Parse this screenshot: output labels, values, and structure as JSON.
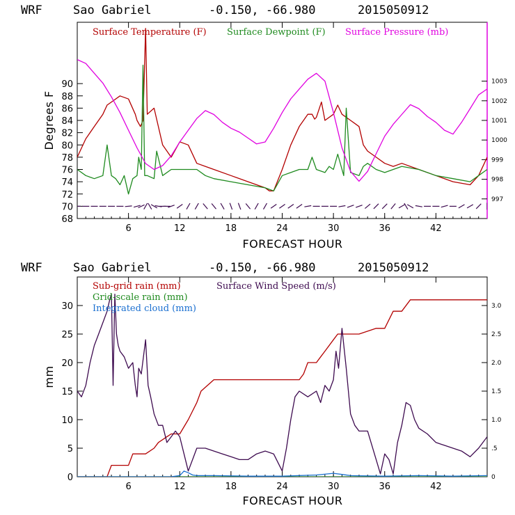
{
  "colors": {
    "temperature": "#b30000",
    "dewpoint": "#1e8a1e",
    "pressure": "#e000e0",
    "subgrid_rain": "#b30000",
    "gridscale_rain": "#1e8a1e",
    "cloud": "#1a6fd0",
    "wind": "#3d0a4f",
    "axis": "#000000"
  },
  "chart_data": [
    {
      "type": "line",
      "header": {
        "model": "WRF",
        "station": "Sao Gabriel",
        "coords": "-0.150, -66.980",
        "init": "2015050912"
      },
      "xlabel": "FORECAST HOUR",
      "ylabel": "Degrees F",
      "xlim": [
        0,
        48
      ],
      "ylim": [
        68,
        100
      ],
      "y2lim": [
        996,
        1006
      ],
      "xticks": [
        6,
        12,
        18,
        24,
        30,
        36,
        42
      ],
      "xtick_labels": [
        "6",
        "12",
        "18",
        "24",
        "30",
        "36",
        "42"
      ],
      "yticks": [
        68,
        70,
        72,
        74,
        76,
        78,
        80,
        82,
        84,
        86,
        88,
        90
      ],
      "ytick_labels": [
        "68",
        "70",
        "72",
        "74",
        "76",
        "78",
        "80",
        "82",
        "84",
        "86",
        "88",
        "90"
      ],
      "y2ticks": [
        997,
        998,
        999,
        1000,
        1001,
        1002,
        1003
      ],
      "y2tick_labels": [
        "997",
        "998",
        "999",
        "1000",
        "1001",
        "1002",
        "1003"
      ],
      "legend": [
        "Surface Temperature (F)",
        "Surface Dewpoint (F)",
        "Surface Pressure (mb)"
      ],
      "series": [
        {
          "name": "Surface Temperature (F)",
          "axis": "left",
          "x": [
            0,
            1,
            2,
            3,
            3.5,
            4,
            5,
            6,
            6.8,
            7,
            7.4,
            7.7,
            8,
            8.2,
            9,
            10,
            11,
            12,
            13,
            14,
            15,
            16,
            18,
            20,
            22,
            22.5,
            23,
            24,
            25,
            26,
            27,
            27.5,
            27.8,
            28,
            28.6,
            29,
            30,
            30.5,
            31,
            32,
            33,
            33.5,
            34,
            35,
            36,
            37,
            38,
            40,
            42,
            44,
            46,
            47,
            48
          ],
          "y": [
            78,
            81,
            83,
            85,
            86.5,
            87,
            88,
            87.5,
            85,
            84,
            83,
            84,
            99,
            85,
            86,
            80,
            78,
            80.5,
            80,
            77,
            76.5,
            76,
            75,
            74,
            73,
            72.5,
            72.5,
            76,
            80,
            83,
            85,
            85,
            84.2,
            84.5,
            87,
            84,
            85,
            86.5,
            85,
            84,
            83,
            80,
            79,
            78,
            77,
            76.5,
            77,
            76,
            75,
            74,
            73.5,
            75,
            78
          ]
        },
        {
          "name": "Surface Dewpoint (F)",
          "axis": "left",
          "x": [
            0,
            1,
            2,
            3,
            3.5,
            4,
            4.5,
            5,
            5.5,
            6,
            6.5,
            7,
            7.2,
            7.5,
            7.7,
            7.9,
            8.2,
            9,
            9.3,
            10,
            11,
            12,
            13,
            14,
            15,
            16,
            18,
            20,
            22,
            23,
            24,
            25,
            26,
            27,
            27.5,
            28,
            29,
            29.5,
            30,
            30.5,
            31,
            31.2,
            31.5,
            32,
            33,
            33.5,
            34,
            35,
            36,
            37,
            38,
            40,
            42,
            44,
            46,
            47,
            48
          ],
          "y": [
            76,
            75,
            74.5,
            75,
            80,
            75,
            74.5,
            73.5,
            75,
            72,
            74.5,
            75,
            78,
            76,
            93,
            75,
            75,
            74.5,
            79,
            75,
            76,
            76,
            76,
            76,
            75,
            74.5,
            74,
            73.5,
            73,
            72.5,
            75,
            75.5,
            76,
            76,
            78,
            76,
            75.5,
            76.5,
            76,
            78.5,
            76,
            75,
            86,
            75.5,
            75,
            76.5,
            77,
            76,
            75.5,
            76,
            76.5,
            76,
            75,
            74.5,
            74,
            75,
            76
          ]
        },
        {
          "name": "Surface Pressure (mb)",
          "axis": "right",
          "x": [
            0,
            1,
            2,
            3,
            4,
            5,
            6,
            7,
            8,
            9,
            10,
            11,
            12,
            13,
            14,
            15,
            16,
            17,
            18,
            19,
            20,
            21,
            22,
            23,
            24,
            25,
            26,
            27,
            28,
            29,
            30,
            31,
            32,
            33,
            34,
            35,
            36,
            37,
            38,
            39,
            40,
            41,
            42,
            43,
            44,
            45,
            46,
            47,
            48
          ],
          "y": [
            1004.1,
            1003.9,
            1003.4,
            1002.9,
            1002.2,
            1001.4,
            1000.5,
            999.6,
            998.8,
            998.5,
            998.7,
            999.2,
            999.9,
            1000.5,
            1001.1,
            1001.5,
            1001.3,
            1000.9,
            1000.6,
            1000.4,
            1000.1,
            999.8,
            999.9,
            1000.6,
            1001.4,
            1002.1,
            1002.6,
            1003.1,
            1003.4,
            1003.0,
            1001.4,
            999.6,
            998.4,
            997.9,
            998.4,
            999.3,
            1000.2,
            1000.8,
            1001.3,
            1001.8,
            1001.6,
            1001.2,
            1000.9,
            1000.5,
            1000.3,
            1000.9,
            1001.6,
            1002.3,
            1002.6
          ]
        }
      ],
      "wind_barbs": {
        "y_level": 70,
        "x": [
          0,
          1,
          2,
          3,
          4,
          5,
          6,
          7,
          7.5,
          8,
          8.5,
          9,
          9.5,
          10,
          10.5,
          11,
          12,
          13,
          14,
          15,
          16,
          17,
          18,
          19,
          20,
          21,
          22,
          23,
          24,
          25,
          26,
          27,
          28,
          29,
          30,
          31,
          32,
          33,
          34,
          35,
          36,
          37,
          38,
          38.5,
          39,
          40,
          41,
          42,
          43,
          44,
          45,
          46,
          47,
          48
        ],
        "angle_deg": [
          0,
          0,
          0,
          0,
          0,
          0,
          5,
          15,
          25,
          60,
          120,
          150,
          170,
          180,
          0,
          200,
          35,
          60,
          60,
          130,
          130,
          120,
          110,
          110,
          130,
          60,
          60,
          35,
          35,
          35,
          35,
          10,
          0,
          0,
          180,
          190,
          200,
          200,
          220,
          45,
          45,
          50,
          30,
          120,
          150,
          170,
          0,
          0,
          15,
          0,
          30,
          30,
          45,
          90
        ]
      }
    },
    {
      "type": "line",
      "header": {
        "model": "WRF",
        "station": "Sao Gabriel",
        "coords": "-0.150, -66.980",
        "init": "2015050912"
      },
      "xlabel": "FORECAST HOUR",
      "ylabel": "mm",
      "xlim": [
        0,
        48
      ],
      "ylim": [
        0,
        35
      ],
      "y2lim": [
        0,
        3.5
      ],
      "xticks": [
        6,
        12,
        18,
        24,
        30,
        36,
        42
      ],
      "xtick_labels": [
        "6",
        "12",
        "18",
        "24",
        "30",
        "36",
        "42"
      ],
      "yticks": [
        0,
        5,
        10,
        15,
        20,
        25,
        30
      ],
      "ytick_labels": [
        "0",
        "5",
        "10",
        "15",
        "20",
        "25",
        "30"
      ],
      "y2ticks": [
        0,
        0.5,
        1.0,
        1.5,
        2.0,
        2.5,
        3.0
      ],
      "y2tick_labels": [
        "0",
        ".5",
        "1.0",
        "1.5",
        "2.0",
        "2.5",
        "3.0"
      ],
      "legend": [
        "Sub-grid rain (mm)",
        "Grid-scale rain (mm)",
        "Integrated cloud (mm)",
        "Surface Wind Speed (m/s)"
      ],
      "series": [
        {
          "name": "Sub-grid rain (mm)",
          "axis": "left",
          "x": [
            0,
            3.5,
            4,
            6,
            6.5,
            8,
            9,
            9.5,
            10,
            10.5,
            11,
            12,
            13,
            14,
            14.5,
            16,
            20,
            24,
            26,
            26.5,
            27,
            28,
            28.5,
            29,
            30,
            30.5,
            31,
            32,
            33,
            35,
            36,
            37,
            38,
            39,
            40,
            42,
            44,
            46,
            48
          ],
          "y": [
            0,
            0,
            2,
            2,
            4,
            4,
            5,
            6,
            6.5,
            7,
            7.5,
            7.5,
            10,
            13,
            15,
            17,
            17,
            17,
            17,
            18,
            20,
            20,
            21,
            22,
            24,
            25,
            25,
            25,
            25,
            26,
            26,
            29,
            29,
            31,
            31,
            31,
            31,
            31,
            31
          ]
        },
        {
          "name": "Grid-scale rain (mm)",
          "axis": "left",
          "x": [
            0,
            48
          ],
          "y": [
            0,
            0
          ]
        },
        {
          "name": "Integrated cloud (mm)",
          "axis": "right",
          "x": [
            0,
            11,
            12,
            12.5,
            13,
            13.5,
            14,
            16,
            20,
            24,
            28,
            30,
            31,
            32,
            36,
            40,
            44,
            48
          ],
          "y": [
            0,
            0,
            0.02,
            0.1,
            0.07,
            0.03,
            0.02,
            0.02,
            0.01,
            0.01,
            0.03,
            0.06,
            0.04,
            0.02,
            0.01,
            0.02,
            0.01,
            0.02
          ]
        },
        {
          "name": "Surface Wind Speed (m/s)",
          "axis": "right",
          "x": [
            0,
            0.5,
            1,
            1.5,
            2,
            2.5,
            3,
            3.5,
            3.8,
            4,
            4.2,
            4.4,
            4.6,
            4.8,
            5,
            5.5,
            6,
            6.5,
            6.8,
            7,
            7.2,
            7.5,
            8,
            8.3,
            8.6,
            9,
            9.5,
            10,
            10.5,
            11,
            11.5,
            12,
            12.5,
            13,
            13.5,
            14,
            15,
            16,
            17,
            18,
            19,
            20,
            21,
            22,
            23,
            24,
            24.5,
            25,
            25.5,
            26,
            27,
            28,
            28.5,
            29,
            29.5,
            30,
            30.3,
            30.6,
            31,
            31.5,
            32,
            32.5,
            33,
            34,
            35,
            35.5,
            36,
            36.5,
            37,
            37.5,
            38,
            38.5,
            39,
            39.5,
            40,
            41,
            42,
            43,
            44,
            45,
            46,
            47,
            48
          ],
          "y": [
            1.5,
            1.4,
            1.6,
            2.0,
            2.3,
            2.5,
            2.7,
            2.9,
            3.1,
            3.2,
            1.6,
            3.2,
            2.5,
            2.3,
            2.2,
            2.1,
            1.9,
            2.0,
            1.6,
            1.4,
            1.9,
            1.8,
            2.4,
            1.6,
            1.4,
            1.1,
            0.9,
            0.9,
            0.6,
            0.7,
            0.8,
            0.7,
            0.4,
            0.1,
            0.3,
            0.5,
            0.5,
            0.45,
            0.4,
            0.35,
            0.3,
            0.3,
            0.4,
            0.45,
            0.4,
            0.1,
            0.5,
            1.0,
            1.4,
            1.5,
            1.4,
            1.5,
            1.3,
            1.6,
            1.5,
            1.7,
            2.2,
            1.9,
            2.6,
            1.9,
            1.1,
            0.9,
            0.8,
            0.8,
            0.3,
            0.05,
            0.4,
            0.3,
            0.05,
            0.6,
            0.9,
            1.3,
            1.25,
            1.0,
            0.85,
            0.75,
            0.6,
            0.55,
            0.5,
            0.45,
            0.35,
            0.5,
            0.7
          ]
        }
      ]
    }
  ]
}
